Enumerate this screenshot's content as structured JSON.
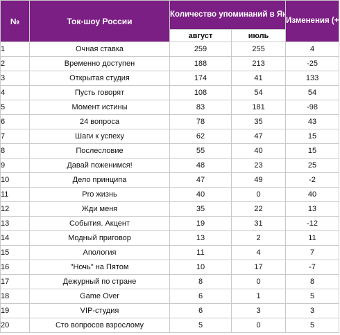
{
  "headers": {
    "num": "№",
    "show": "Ток-шоу России",
    "mentions": "Количество упоминаний в Яндекс.Новости, за месяц",
    "august": "август",
    "july": "июль",
    "change": "Изменения (+/-)"
  },
  "rows": [
    {
      "num": "1",
      "show": "Очная ставка",
      "august": "259",
      "july": "255",
      "change": "4"
    },
    {
      "num": "2",
      "show": "Временно доступен",
      "august": "188",
      "july": "213",
      "change": "-25"
    },
    {
      "num": "3",
      "show": "Открытая студия",
      "august": "174",
      "july": "41",
      "change": "133"
    },
    {
      "num": "4",
      "show": "Пусть говорят",
      "august": "108",
      "july": "54",
      "change": "54"
    },
    {
      "num": "5",
      "show": "Момент истины",
      "august": "83",
      "july": "181",
      "change": "-98"
    },
    {
      "num": "6",
      "show": "24 вопроса",
      "august": "78",
      "july": "35",
      "change": "43"
    },
    {
      "num": "7",
      "show": "Шаги к успеху",
      "august": "62",
      "july": "47",
      "change": "15"
    },
    {
      "num": "8",
      "show": "Послесловие",
      "august": "55",
      "july": "40",
      "change": "15"
    },
    {
      "num": "9",
      "show": "Давай поженимся!",
      "august": "48",
      "july": "23",
      "change": "25"
    },
    {
      "num": "10",
      "show": "Дело принципа",
      "august": "47",
      "july": "49",
      "change": "-2"
    },
    {
      "num": "11",
      "show": "Pro жизнь",
      "august": "40",
      "july": "0",
      "change": "40"
    },
    {
      "num": "12",
      "show": "Жди меня",
      "august": "35",
      "july": "22",
      "change": "13"
    },
    {
      "num": "13",
      "show": "События. Акцент",
      "august": "19",
      "july": "31",
      "change": "-12"
    },
    {
      "num": "14",
      "show": "Модный приговор",
      "august": "13",
      "july": "2",
      "change": "11"
    },
    {
      "num": "15",
      "show": "Апология",
      "august": "11",
      "july": "4",
      "change": "7"
    },
    {
      "num": "16",
      "show": "\"Ночь\" на Пятом",
      "august": "10",
      "july": "17",
      "change": "-7"
    },
    {
      "num": "17",
      "show": "Дежурный по стране",
      "august": "8",
      "july": "0",
      "change": "8"
    },
    {
      "num": "18",
      "show": "Game Over",
      "august": "6",
      "july": "1",
      "change": "5"
    },
    {
      "num": "19",
      "show": "VIP-студия",
      "august": "6",
      "july": "3",
      "change": "3"
    },
    {
      "num": "20",
      "show": "Сто вопросов взрослому",
      "august": "5",
      "july": "0",
      "change": "5"
    }
  ],
  "colors": {
    "header_bg": "#7b1f84",
    "header_text": "#ffffff",
    "border": "#c9c9c9"
  }
}
